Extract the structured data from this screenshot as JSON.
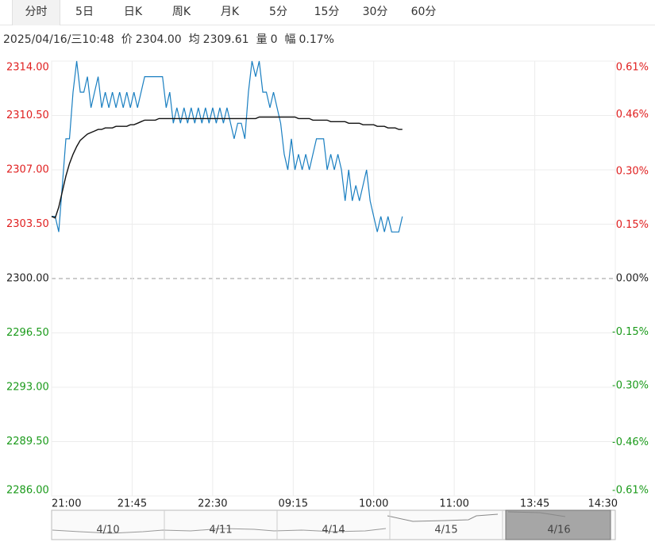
{
  "tabs": [
    "分时",
    "5日",
    "日K",
    "周K",
    "月K",
    "5分",
    "15分",
    "30分",
    "60分"
  ],
  "info": {
    "time": "2025/04/16/三10:48",
    "items": [
      {
        "label": "价",
        "value": "2304.00"
      },
      {
        "label": "均",
        "value": "2309.61"
      },
      {
        "label": "量",
        "value": "0"
      },
      {
        "label": "幅",
        "value": "0.17%"
      }
    ]
  },
  "chart_data": {
    "type": "line",
    "x": [
      0,
      2,
      4,
      6,
      8,
      10,
      12,
      14,
      16,
      18,
      20,
      22,
      24,
      26,
      28,
      30,
      32,
      34,
      36,
      38,
      40,
      42,
      44,
      46,
      48,
      50,
      52,
      54,
      56,
      58,
      60,
      62,
      64,
      66,
      68,
      70,
      72,
      74,
      76,
      78,
      80,
      82,
      84,
      86,
      88,
      90,
      92,
      94,
      96,
      98,
      100,
      102,
      104,
      106,
      108,
      110,
      112,
      114,
      116,
      118,
      120,
      122,
      124,
      126,
      128,
      130,
      132,
      134,
      136,
      138,
      140,
      142,
      144,
      146,
      148,
      150,
      152,
      154,
      156,
      158,
      160,
      162,
      164,
      166,
      168,
      170,
      172,
      174,
      176,
      178,
      180,
      182,
      184,
      186,
      188,
      190,
      192,
      194,
      196
    ],
    "series": [
      {
        "color": "#1a7fc1",
        "values": [
          2304,
          2304,
          2303,
          2306,
          2309,
          2309,
          2312,
          2314,
          2312,
          2312,
          2313,
          2311,
          2312,
          2313,
          2311,
          2312,
          2311,
          2312,
          2311,
          2312,
          2311,
          2312,
          2311,
          2312,
          2311,
          2312,
          2313,
          2313,
          2313,
          2313,
          2313,
          2313,
          2311,
          2312,
          2310,
          2311,
          2310,
          2311,
          2310,
          2311,
          2310,
          2311,
          2310,
          2311,
          2310,
          2311,
          2310,
          2311,
          2310,
          2311,
          2310,
          2309,
          2310,
          2310,
          2309,
          2312,
          2314,
          2313,
          2314,
          2312,
          2312,
          2311,
          2312,
          2311,
          2310,
          2308,
          2307,
          2309,
          2307,
          2308,
          2307,
          2308,
          2307,
          2308,
          2309,
          2309,
          2309,
          2307,
          2308,
          2307,
          2308,
          2307,
          2305,
          2307,
          2305,
          2306,
          2305,
          2306,
          2307,
          2305,
          2304,
          2303,
          2304,
          2303,
          2304,
          2303,
          2303,
          2303,
          2304
        ]
      },
      {
        "color": "#111111",
        "values": [
          2304.0,
          2303.9,
          2304.6,
          2305.6,
          2306.6,
          2307.4,
          2308.0,
          2308.5,
          2308.9,
          2309.1,
          2309.3,
          2309.4,
          2309.5,
          2309.6,
          2309.6,
          2309.7,
          2309.7,
          2309.7,
          2309.8,
          2309.8,
          2309.8,
          2309.8,
          2309.9,
          2309.9,
          2310.0,
          2310.1,
          2310.2,
          2310.2,
          2310.2,
          2310.2,
          2310.3,
          2310.3,
          2310.3,
          2310.3,
          2310.3,
          2310.3,
          2310.3,
          2310.3,
          2310.3,
          2310.3,
          2310.3,
          2310.3,
          2310.3,
          2310.3,
          2310.3,
          2310.3,
          2310.3,
          2310.3,
          2310.3,
          2310.3,
          2310.3,
          2310.3,
          2310.3,
          2310.3,
          2310.3,
          2310.3,
          2310.3,
          2310.3,
          2310.4,
          2310.4,
          2310.4,
          2310.4,
          2310.4,
          2310.4,
          2310.4,
          2310.4,
          2310.4,
          2310.4,
          2310.4,
          2310.3,
          2310.3,
          2310.3,
          2310.3,
          2310.2,
          2310.2,
          2310.2,
          2310.2,
          2310.2,
          2310.1,
          2310.1,
          2310.1,
          2310.1,
          2310.1,
          2310.0,
          2310.0,
          2310.0,
          2310.0,
          2309.9,
          2309.9,
          2309.9,
          2309.9,
          2309.8,
          2309.8,
          2309.8,
          2309.7,
          2309.7,
          2309.7,
          2309.6,
          2309.6
        ]
      }
    ],
    "xlim": [
      0,
      315
    ],
    "xticks": [
      {
        "value": 0,
        "label": "21:00"
      },
      {
        "value": 45,
        "label": "21:45"
      },
      {
        "value": 90,
        "label": "22:30"
      },
      {
        "value": 135,
        "label": "09:15"
      },
      {
        "value": 180,
        "label": "10:00"
      },
      {
        "value": 225,
        "label": "11:00"
      },
      {
        "value": 270,
        "label": "13:45"
      },
      {
        "value": 315,
        "label": "14:30"
      }
    ],
    "ylim": [
      2286,
      2314
    ],
    "yticks": [
      {
        "value": 2314,
        "label": "2314.00"
      },
      {
        "value": 2310.5,
        "label": "2310.50"
      },
      {
        "value": 2307,
        "label": "2307.00"
      },
      {
        "value": 2303.5,
        "label": "2303.50"
      },
      {
        "value": 2300,
        "label": "2300.00"
      },
      {
        "value": 2296.5,
        "label": "2296.50"
      },
      {
        "value": 2293,
        "label": "2293.00"
      },
      {
        "value": 2289.5,
        "label": "2289.50"
      },
      {
        "value": 2286,
        "label": "2286.00"
      }
    ],
    "y2lim": [
      -0.61,
      0.61
    ],
    "y2ticks": [
      {
        "value": 0.61,
        "label": "0.61%"
      },
      {
        "value": 0.46,
        "label": "0.46%"
      },
      {
        "value": 0.3,
        "label": "0.30%"
      },
      {
        "value": 0.15,
        "label": "0.15%"
      },
      {
        "value": 0,
        "label": "0.00%"
      },
      {
        "value": -0.15,
        "label": "-0.15%"
      },
      {
        "value": -0.3,
        "label": "-0.30%"
      },
      {
        "value": -0.46,
        "label": "-0.46%"
      },
      {
        "value": -0.61,
        "label": "-0.61%"
      }
    ],
    "reference_line": 2300,
    "up_color": "#e02020",
    "down_color": "#1a9a1a",
    "flat_color": "#222222",
    "grid": true
  },
  "navigator": {
    "dates": [
      "4/10",
      "4/11",
      "4/14",
      "4/15",
      "4/16"
    ]
  }
}
